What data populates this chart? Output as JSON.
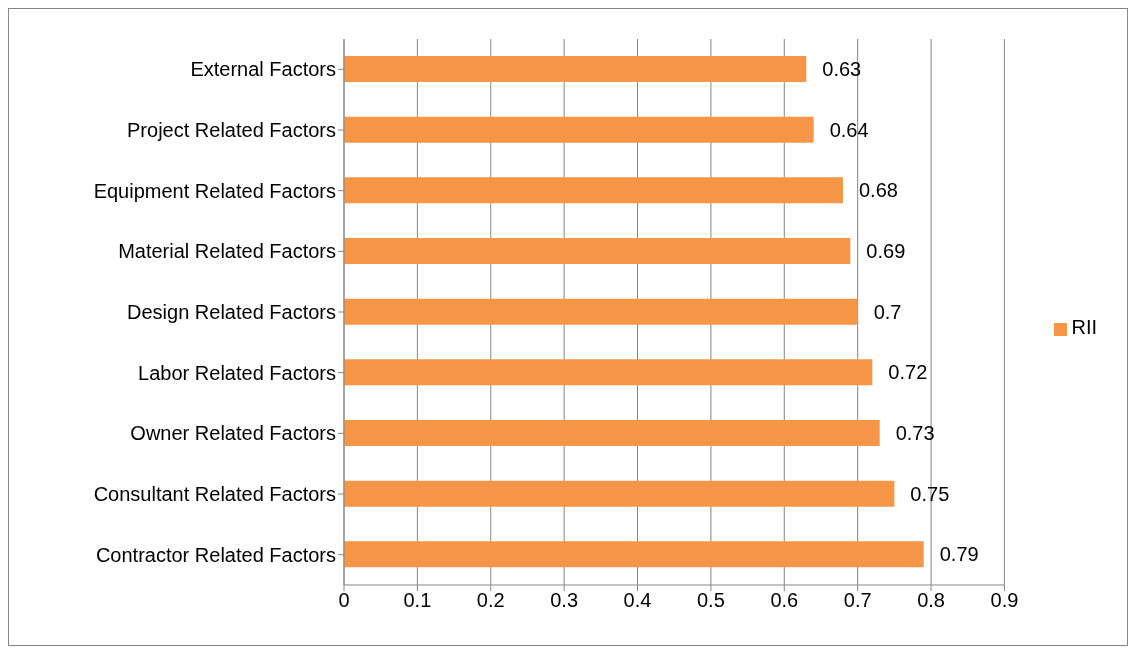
{
  "chart_data": {
    "type": "bar",
    "orientation": "horizontal",
    "categories": [
      "External Factors",
      "Project Related Factors",
      "Equipment Related Factors",
      "Material Related Factors",
      "Design Related Factors",
      "Labor Related Factors",
      "Owner Related Factors",
      "Consultant Related Factors",
      "Contractor Related Factors"
    ],
    "series": [
      {
        "name": "RII",
        "color": "#f79646",
        "values": [
          0.63,
          0.64,
          0.68,
          0.69,
          0.7,
          0.72,
          0.73,
          0.75,
          0.79
        ]
      }
    ],
    "xlim": [
      0,
      0.9
    ],
    "xticks": [
      0,
      0.1,
      0.2,
      0.3,
      0.4,
      0.5,
      0.6,
      0.7,
      0.8,
      0.9
    ],
    "grid": "x",
    "legend": "right",
    "data_labels": true
  }
}
